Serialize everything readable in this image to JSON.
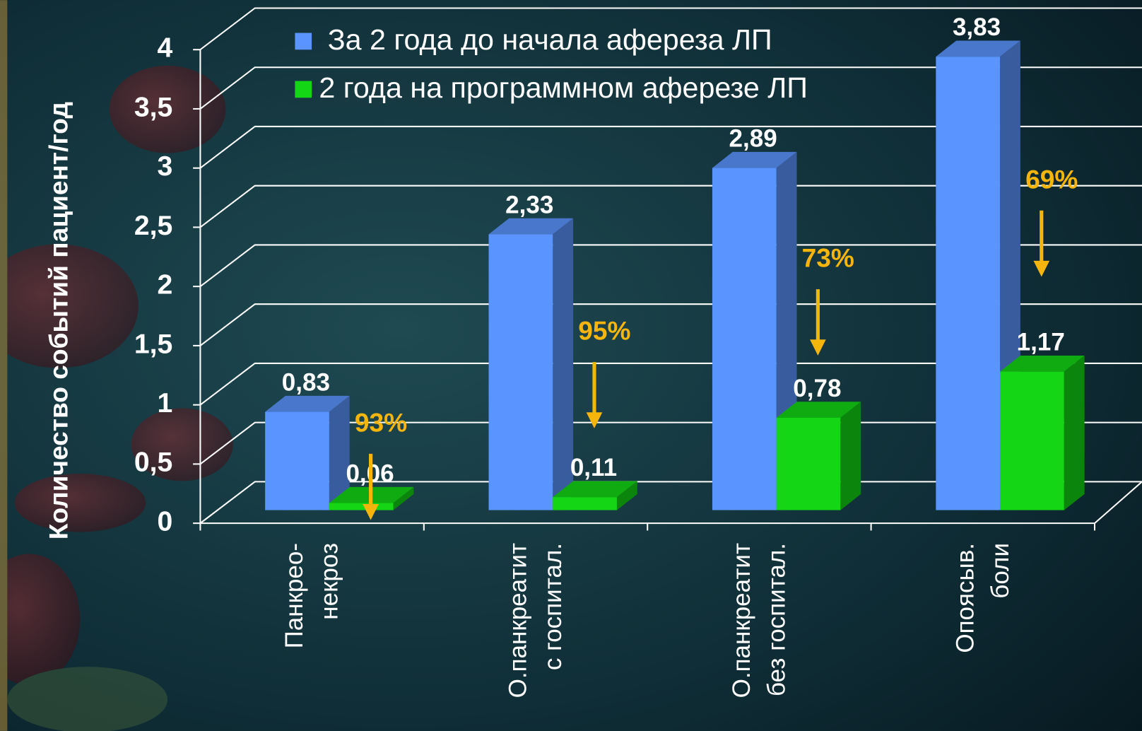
{
  "chart_data": {
    "type": "bar3d",
    "y_label": "Количество событий пациент/год",
    "categories": [
      [
        "Панкрео-",
        "некроз"
      ],
      [
        "О.панкреатит",
        "с госпитал."
      ],
      [
        "О.панкреатит",
        "без госпитал."
      ],
      [
        "Опоясыв.",
        "боли"
      ]
    ],
    "series": [
      {
        "name": "За 2 года до начала афереза ЛП",
        "color": "#5a95ff",
        "values": [
          0.83,
          2.33,
          2.89,
          3.83
        ],
        "value_labels": [
          "0,83",
          "2,33",
          "2,89",
          "3,83"
        ]
      },
      {
        "name": "2 года на программном аферезе ЛП",
        "color": "#14d614",
        "values": [
          0.06,
          0.11,
          0.78,
          1.17
        ],
        "value_labels": [
          "0,06",
          "0,11",
          "0,78",
          "1,17"
        ]
      }
    ],
    "reductions": [
      "93%",
      "95%",
      "73%",
      "69%"
    ],
    "ylim": [
      0,
      4
    ],
    "yticks": [
      0,
      {
        "value": 0.5,
        "label": "0,5"
      },
      1,
      {
        "value": 1.5,
        "label": "1,5"
      },
      2,
      {
        "value": 2.5,
        "label": "2,5"
      },
      3,
      {
        "value": 3.5,
        "label": "3,5"
      },
      4
    ],
    "grid": true
  }
}
